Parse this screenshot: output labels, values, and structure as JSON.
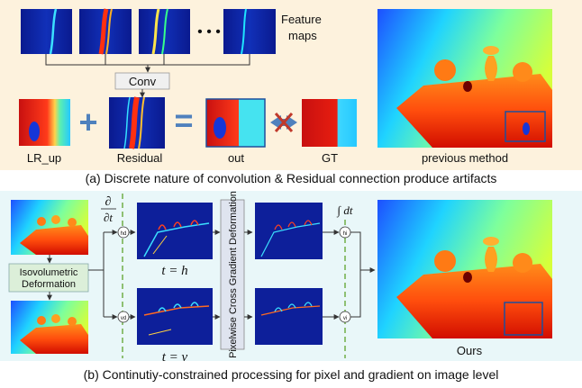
{
  "top_panel": {
    "feature_maps_label_line1": "Feature",
    "feature_maps_label_line2": "maps",
    "ellipsis": "• • •",
    "conv_label": "Conv",
    "plus": "+",
    "equals": "=",
    "lr_up_label": "LR_up",
    "residual_label": "Residual",
    "out_label": "out",
    "gt_label": "GT",
    "previous_method_label": "previous method",
    "caption": "(a) Discrete nature of  convolution & Residual connection produce artifacts"
  },
  "bottom_panel": {
    "partial_top": "∂",
    "partial_bottom": "∂t",
    "iso_line1": "Isovolumetric",
    "iso_line2": "Deformation",
    "hd_node": "hd",
    "vd_node": "vd",
    "hi_node": "hi",
    "vi_node": "vi",
    "t_h_label": "t = h",
    "t_v_label": "t = v",
    "pcgd_label": "Pixelwise Cross Gradient Deformation",
    "integral_label": "∫ dt",
    "ours_label": "Ours",
    "caption": "(b) Continutiy-constrained processing for pixel and gradient on image level"
  },
  "colors": {
    "top_bg": "#fdf2dd",
    "bottom_bg": "#e9f7f9",
    "conv_box": "#f0f0f0",
    "iso_box": "#dcefd9",
    "pcgd_box": "#dfe4ef",
    "plus_equals": "#4f81bd",
    "cross": "#c0392b",
    "dash_line": "#70ad47",
    "highlight_box": "#1f4e9c"
  }
}
